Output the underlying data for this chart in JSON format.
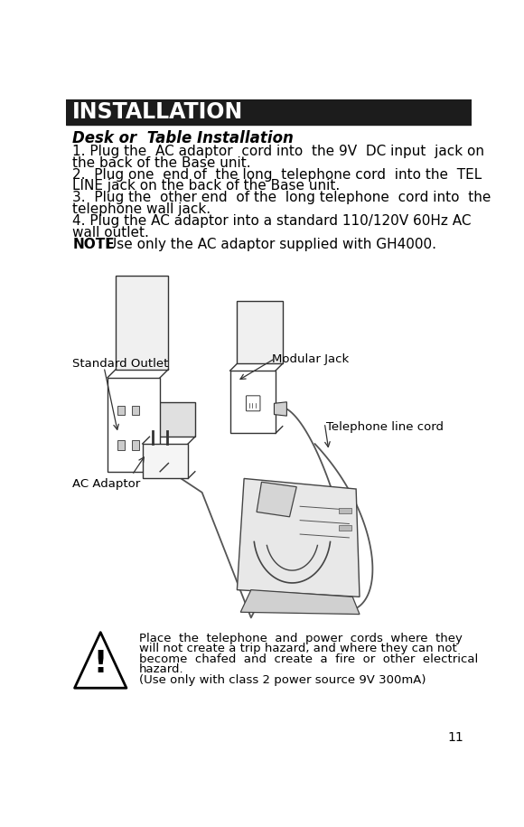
{
  "bg_color": "#ffffff",
  "header_bg": "#1c1c1c",
  "header_text": "INSTALLATION",
  "header_text_color": "#ffffff",
  "header_fontsize": 17,
  "subtitle": "Desk or  Table Installation",
  "subtitle_fontsize": 12,
  "body_fontsize": 11,
  "body_paragraphs": [
    [
      "1. Plug the  AC adaptor  cord into  the 9V  DC input  jack on",
      "the back of the Base unit."
    ],
    [
      "2.  Plug one  end of  the long  telephone cord  into the  TEL",
      "LINE jack on the back of the Base unit."
    ],
    [
      "3.  Plug the  other end  of the  long telephone  cord into  the",
      "telephone wall jack."
    ],
    [
      "4. Plug the AC adaptor into a standard 110/120V 60Hz AC",
      "wall outlet."
    ],
    [
      "NOTE_SPECIAL: Use only the AC adaptor supplied with GH4000."
    ]
  ],
  "label_standard_outlet": "Standard Outlet",
  "label_modular_jack": "Modular Jack",
  "label_telephone_cord": "Telephone line cord",
  "label_ac_adaptor": "AC Adaptor",
  "warning_line1": "Place  the  telephone  and  power  cords  where  they",
  "warning_line2": "will not create a trip hazard, and where they can not",
  "warning_line3": "become  chafed  and  create  a  fire  or  other  electrical",
  "warning_line4": "hazard.",
  "warning_line5": "(Use only with class 2 power source 9V 300mA)",
  "page_number": "11",
  "small_fontsize": 9.5,
  "label_fontsize": 9.5
}
